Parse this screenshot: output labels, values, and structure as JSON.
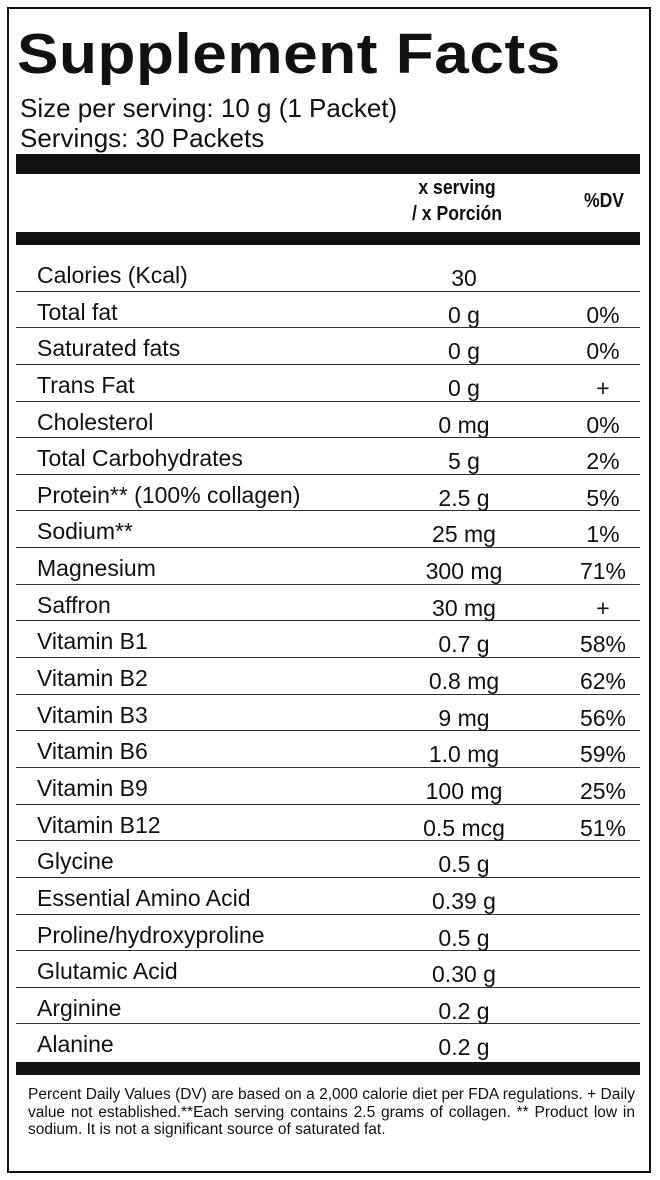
{
  "label": {
    "title": "Supplement Facts",
    "serving_size": "Size per serving: 10 g (1 Packet)",
    "servings": "Servings: 30 Packets",
    "col_amount_line1": "x serving",
    "col_amount_line2": "/ x Porción",
    "col_dv": "%DV"
  },
  "nutrients": [
    {
      "name": "Calories (Kcal)",
      "amount": "30",
      "dv": ""
    },
    {
      "name": "Total fat",
      "amount": "0 g",
      "dv": "0%"
    },
    {
      "name": "Saturated fats",
      "amount": "0 g",
      "dv": "0%"
    },
    {
      "name": "Trans Fat",
      "amount": "0 g",
      "dv": "+"
    },
    {
      "name": "Cholesterol",
      "amount": "0 mg",
      "dv": "0%"
    },
    {
      "name": "Total Carbohydrates",
      "amount": "5 g",
      "dv": "2%"
    },
    {
      "name": "Protein** (100% collagen)",
      "amount": "2.5 g",
      "dv": "5%"
    },
    {
      "name": "Sodium**",
      "amount": "25 mg",
      "dv": "1%"
    },
    {
      "name": "Magnesium",
      "amount": "300 mg",
      "dv": "71%"
    },
    {
      "name": "Saffron",
      "amount": "30 mg",
      "dv": "+"
    },
    {
      "name": "Vitamin B1",
      "amount": "0.7 g",
      "dv": "58%"
    },
    {
      "name": "Vitamin B2",
      "amount": "0.8 mg",
      "dv": "62%"
    },
    {
      "name": "Vitamin B3",
      "amount": "9 mg",
      "dv": "56%"
    },
    {
      "name": "Vitamin B6",
      "amount": "1.0 mg",
      "dv": "59%"
    },
    {
      "name": "Vitamin B9",
      "amount": "100 mg",
      "dv": "25%"
    },
    {
      "name": "Vitamin B12",
      "amount": "0.5 mcg",
      "dv": "51%"
    },
    {
      "name": "Glycine",
      "amount": "0.5 g",
      "dv": ""
    },
    {
      "name": "Essential Amino Acid",
      "amount": "0.39 g",
      "dv": ""
    },
    {
      "name": "Proline/hydroxyproline",
      "amount": "0.5 g",
      "dv": ""
    },
    {
      "name": "Glutamic Acid",
      "amount": "0.30 g",
      "dv": ""
    },
    {
      "name": "Arginine",
      "amount": "0.2 g",
      "dv": ""
    },
    {
      "name": "Alanine",
      "amount": "0.2 g",
      "dv": ""
    }
  ],
  "footnote": "Percent Daily Values (DV) are based on a 2,000 calorie diet per FDA regulations. + Daily value not established.**Each serving contains 2.5 grams of collagen. ** Product low in sodium. It is not a significant source of saturated fat."
}
